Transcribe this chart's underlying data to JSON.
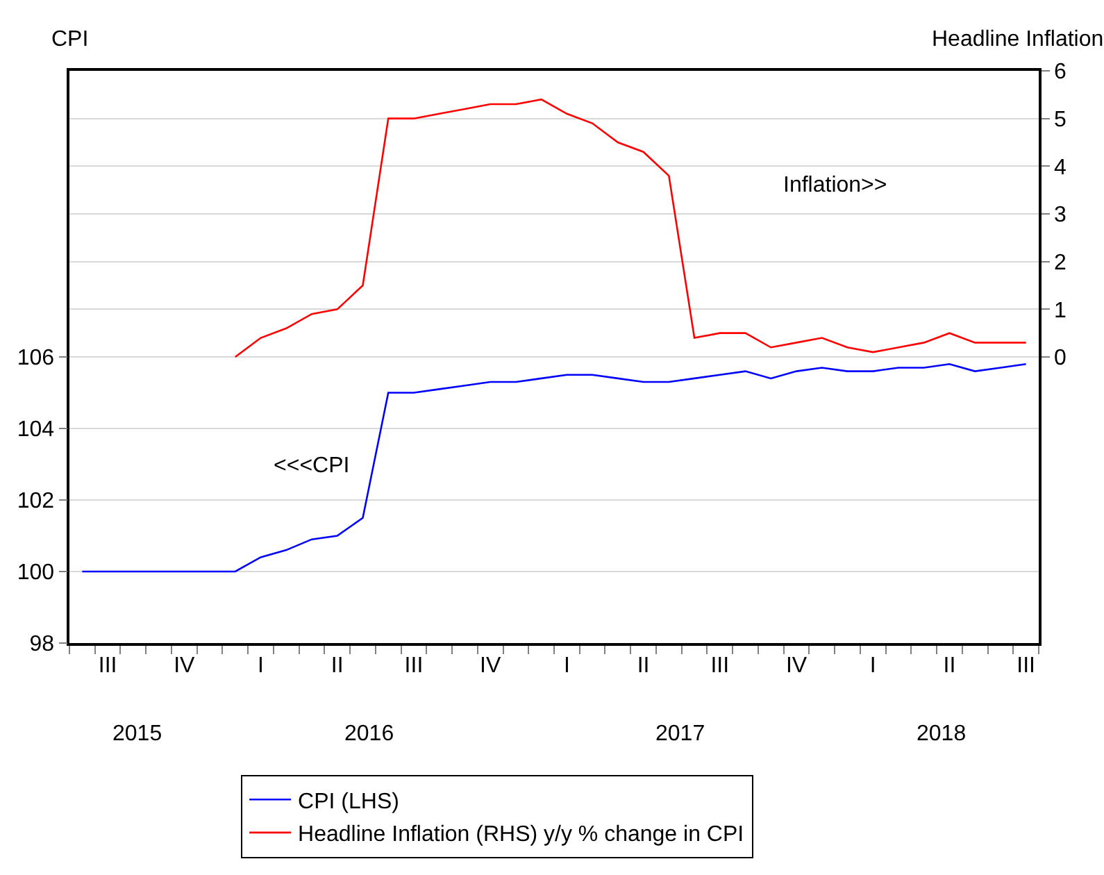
{
  "chart_data": {
    "type": "line",
    "ylabel": "CPI",
    "y2label": "Headline Inflation",
    "categories": [
      null,
      "III",
      null,
      null,
      "IV",
      null,
      null,
      "I",
      null,
      null,
      "II",
      null,
      null,
      "III",
      null,
      null,
      "IV",
      null,
      null,
      "I",
      null,
      null,
      "II",
      null,
      null,
      "III",
      null,
      null,
      "IV",
      null,
      null,
      "I",
      null,
      null,
      "II",
      null,
      null,
      "III"
    ],
    "series": [
      {
        "name": "CPI (LHS)",
        "color": "#0000ff",
        "values": [
          100,
          100,
          100,
          100,
          100,
          100,
          100,
          100.4,
          100.6,
          100.9,
          101.0,
          101.5,
          105.0,
          105.0,
          105.1,
          105.2,
          105.3,
          105.3,
          105.4,
          105.5,
          105.5,
          105.4,
          105.3,
          105.3,
          105.4,
          105.5,
          105.6,
          105.4,
          105.6,
          105.7,
          105.6,
          105.6,
          105.7,
          105.7,
          105.8,
          105.6,
          105.7,
          105.8
        ]
      },
      {
        "name": "Headline Inflation (RHS) y/y % change in CPI",
        "color": "#ff0000",
        "axis": "y2",
        "values": [
          null,
          null,
          null,
          null,
          null,
          null,
          0,
          0.4,
          0.6,
          0.9,
          1.0,
          1.5,
          5.0,
          5.0,
          5.1,
          5.2,
          5.3,
          5.3,
          5.4,
          5.1,
          4.9,
          4.5,
          4.3,
          3.8,
          0.4,
          0.5,
          0.5,
          0.2,
          0.3,
          0.4,
          0.2,
          0.1,
          0.2,
          0.3,
          0.5,
          0.3,
          0.3,
          0.3
        ]
      }
    ],
    "ylim": [
      98,
      114
    ],
    "yticks": [
      98,
      100,
      102,
      104,
      106
    ],
    "y2lim": [
      -6,
      6
    ],
    "y2ticks": [
      0,
      1,
      2,
      3,
      4,
      5,
      6
    ],
    "annotations": [
      "<<<CPI",
      "Inflation>>",
      "2015",
      "2016",
      "2017",
      "2018"
    ],
    "grid": "y",
    "legend": "bottom"
  }
}
